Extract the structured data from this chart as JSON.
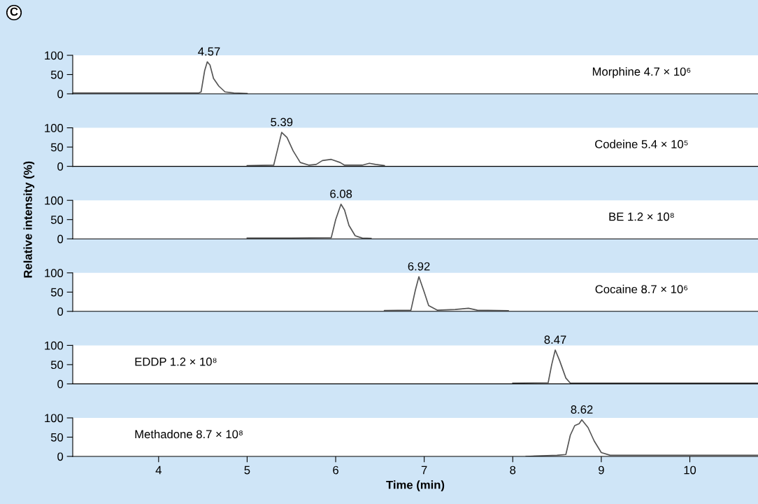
{
  "chart_data": [
    {
      "type": "line",
      "title": "C",
      "xlim": [
        3.03,
        10.77
      ],
      "ylim": [
        0,
        100
      ],
      "yticks": [
        0,
        50,
        100
      ],
      "tick_labels": "y",
      "series": [
        {
          "color": "#555555",
          "x": [
            3.03,
            3.5,
            4.0,
            4.45,
            4.48,
            4.52,
            4.55,
            4.58,
            4.62,
            4.68,
            4.75,
            4.85,
            5.0
          ],
          "values": [
            2,
            2,
            2,
            2,
            5,
            60,
            83,
            75,
            40,
            20,
            5,
            2,
            1
          ]
        }
      ],
      "annotations": [
        {
          "text": "4.57",
          "x": 4.57,
          "y": 83
        },
        "Morphine 4.7 × 10⁶"
      ]
    },
    {
      "type": "line",
      "xlim": [
        3.03,
        10.77
      ],
      "ylim": [
        0,
        100
      ],
      "yticks": [
        0,
        50,
        100
      ],
      "tick_labels": "y",
      "series": [
        {
          "color": "#555555",
          "x": [
            5.0,
            5.3,
            5.35,
            5.39,
            5.45,
            5.52,
            5.6,
            5.7,
            5.78,
            5.85,
            5.95,
            6.05,
            6.1,
            6.3,
            6.38,
            6.45,
            6.55
          ],
          "values": [
            2,
            3,
            50,
            88,
            75,
            40,
            10,
            3,
            5,
            15,
            18,
            10,
            3,
            3,
            8,
            5,
            2
          ]
        }
      ],
      "annotations": [
        {
          "text": "5.39",
          "x": 5.39,
          "y": 88
        },
        "Codeine 5.4 × 10⁵"
      ]
    },
    {
      "type": "line",
      "ylabel": "Relative intensity (%)",
      "xlim": [
        3.03,
        10.77
      ],
      "ylim": [
        0,
        100
      ],
      "yticks": [
        0,
        50,
        100
      ],
      "tick_labels": "y",
      "series": [
        {
          "color": "#555555",
          "x": [
            5.0,
            5.5,
            5.95,
            6.0,
            6.06,
            6.1,
            6.15,
            6.22,
            6.3,
            6.4
          ],
          "values": [
            2,
            2,
            3,
            50,
            90,
            75,
            35,
            8,
            2,
            1
          ]
        }
      ],
      "annotations": [
        {
          "text": "6.08",
          "x": 6.06,
          "y": 90
        },
        "BE 1.2 × 10⁸"
      ]
    },
    {
      "type": "line",
      "xlim": [
        3.03,
        10.77
      ],
      "ylim": [
        0,
        100
      ],
      "yticks": [
        0,
        50,
        100
      ],
      "tick_labels": "y",
      "series": [
        {
          "color": "#555555",
          "x": [
            6.55,
            6.85,
            6.9,
            6.94,
            7.0,
            7.05,
            7.15,
            7.35,
            7.5,
            7.6,
            7.95
          ],
          "values": [
            2,
            3,
            55,
            90,
            50,
            15,
            3,
            5,
            8,
            3,
            2
          ]
        }
      ],
      "annotations": [
        {
          "text": "6.92",
          "x": 6.94,
          "y": 90
        },
        "Cocaine 8.7 × 10⁶"
      ]
    },
    {
      "type": "line",
      "xlim": [
        3.03,
        10.77
      ],
      "ylim": [
        0,
        100
      ],
      "yticks": [
        0,
        50,
        100
      ],
      "tick_labels": "y",
      "series": [
        {
          "color": "#555555",
          "x": [
            8.0,
            8.4,
            8.44,
            8.48,
            8.53,
            8.6,
            8.65,
            9.5,
            10.77
          ],
          "values": [
            2,
            3,
            50,
            88,
            60,
            15,
            2,
            2,
            2
          ]
        }
      ],
      "annotations": [
        {
          "text": "8.47",
          "x": 8.48,
          "y": 88
        },
        "EDDP 1.2 × 10⁸"
      ]
    },
    {
      "type": "line",
      "xlabel": "Time (min)",
      "xlim": [
        3.03,
        10.77
      ],
      "xticks": [
        4,
        5,
        6,
        7,
        8,
        9,
        10
      ],
      "ylim": [
        0,
        100
      ],
      "yticks": [
        0,
        50,
        100
      ],
      "series": [
        {
          "color": "#555555",
          "x": [
            8.15,
            8.5,
            8.6,
            8.65,
            8.7,
            8.75,
            8.78,
            8.85,
            8.92,
            9.0,
            9.1,
            10.77
          ],
          "values": [
            0,
            3,
            5,
            55,
            80,
            85,
            95,
            75,
            40,
            10,
            3,
            3
          ]
        }
      ],
      "annotations": [
        "8.62",
        "Methadone 8.7 × 10⁸"
      ]
    }
  ]
}
